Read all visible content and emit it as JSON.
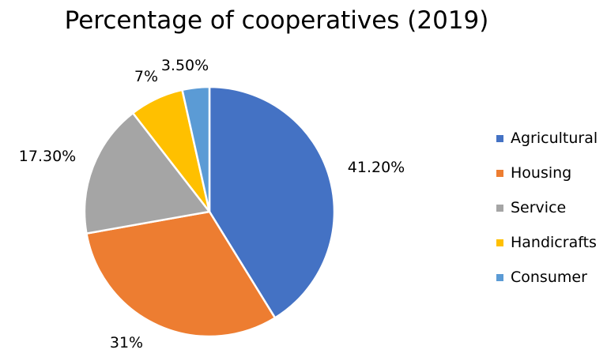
{
  "chart_data": {
    "type": "pie",
    "title": "Percentage of cooperatives (2019)",
    "start_angle_deg": 0,
    "direction": "clockwise",
    "slices": [
      {
        "name": "Agricultural",
        "value": 41.2,
        "label": "41.20%",
        "color": "#4472C4"
      },
      {
        "name": "Housing",
        "value": 31,
        "label": "31%",
        "color": "#ED7D31"
      },
      {
        "name": "Service",
        "value": 17.3,
        "label": "17.30%",
        "color": "#A5A5A5"
      },
      {
        "name": "Handicrafts",
        "value": 7,
        "label": "7%",
        "color": "#FFC000"
      },
      {
        "name": "Consumer",
        "value": 3.5,
        "label": "3.50%",
        "color": "#5B9BD5"
      }
    ],
    "legend_position": "right"
  }
}
